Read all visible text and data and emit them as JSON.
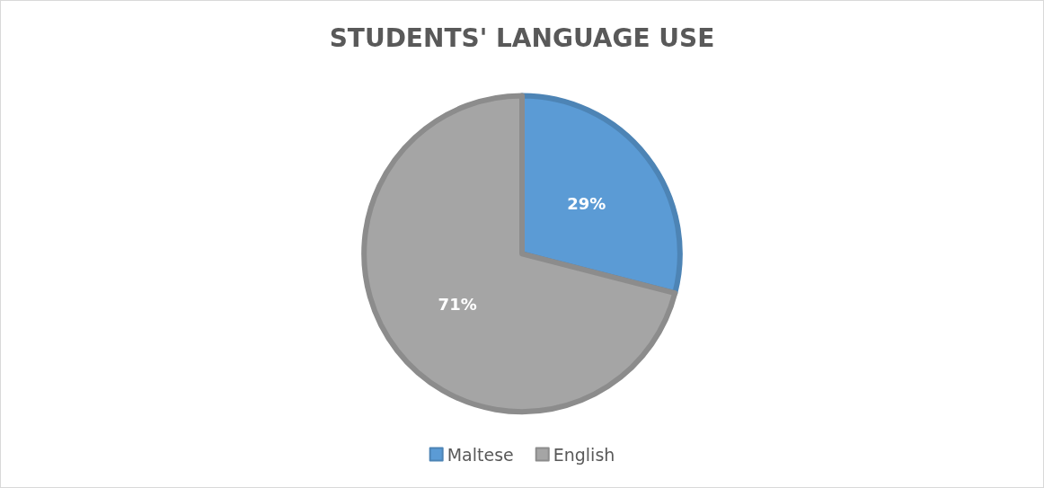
{
  "chart_data": {
    "type": "pie",
    "title": "STUDENTS' LANGUAGE USE",
    "categories": [
      "Maltese",
      "English"
    ],
    "values": [
      29,
      71
    ],
    "colors": [
      "#5b9bd5",
      "#a5a5a5"
    ],
    "value_labels": [
      "29%",
      "71%"
    ],
    "legend": "bottom"
  }
}
